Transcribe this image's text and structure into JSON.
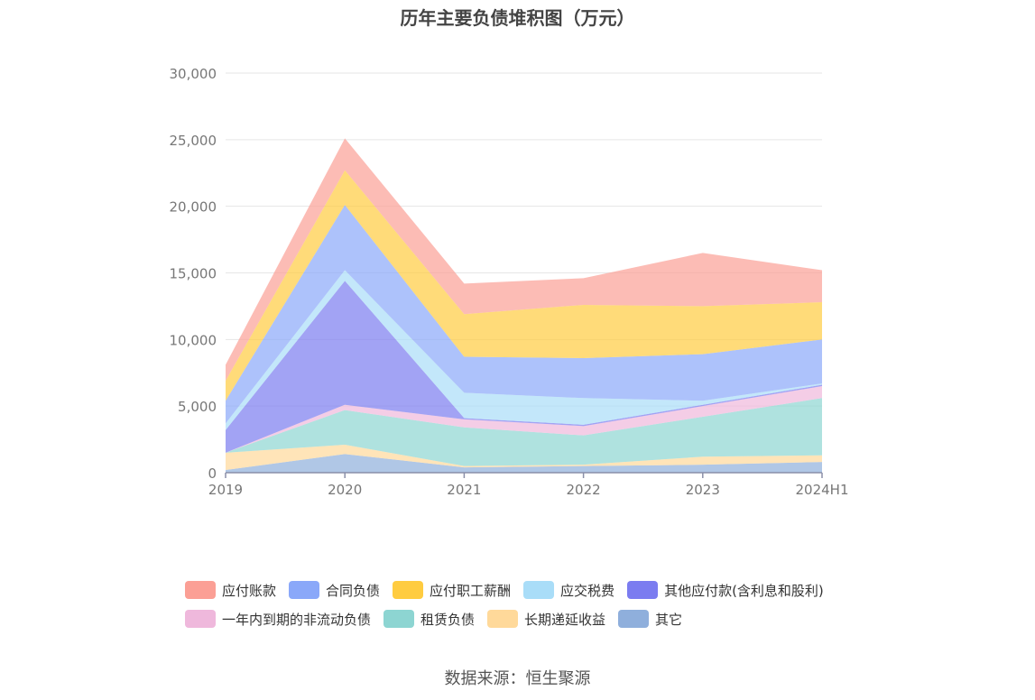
{
  "chart_data": {
    "type": "area",
    "stacked": true,
    "title": "历年主要负债堆积图（万元）",
    "source": "数据来源：恒生聚源",
    "x": [
      "2019",
      "2020",
      "2021",
      "2022",
      "2023",
      "2024H1"
    ],
    "yticks": [
      "0",
      "5,000",
      "10,000",
      "15,000",
      "20,000",
      "25,000",
      "30,000"
    ],
    "ylim": [
      0,
      30000
    ],
    "grid": true,
    "legend_position": "bottom",
    "series": [
      {
        "name": "其它",
        "color": "#8fafdc",
        "values": [
          200,
          1400,
          400,
          500,
          600,
          800
        ]
      },
      {
        "name": "长期递延收益",
        "color": "#ffd99a",
        "values": [
          1300,
          700,
          100,
          100,
          600,
          500
        ]
      },
      {
        "name": "租赁负债",
        "color": "#8dd5d2",
        "values": [
          0,
          2600,
          2900,
          2200,
          3000,
          4300
        ]
      },
      {
        "name": "一年内到期的非流动负债",
        "color": "#efb8dc",
        "values": [
          0,
          400,
          600,
          700,
          800,
          900
        ]
      },
      {
        "name": "其他应付款(含利息和股利)",
        "color": "#7b7cf0",
        "values": [
          1700,
          9300,
          100,
          100,
          100,
          100
        ]
      },
      {
        "name": "应交税费",
        "color": "#a9ddf8",
        "values": [
          500,
          800,
          1900,
          2000,
          300,
          100
        ]
      },
      {
        "name": "合同负债",
        "color": "#8aa8f9",
        "values": [
          1700,
          4900,
          2700,
          3000,
          3500,
          3300
        ]
      },
      {
        "name": "应付职工薪酬",
        "color": "#ffcc40",
        "values": [
          1500,
          2600,
          3200,
          4000,
          3600,
          2800
        ]
      },
      {
        "name": "应付账款",
        "color": "#fb9f95",
        "values": [
          1200,
          2400,
          2300,
          2000,
          4000,
          2400
        ]
      }
    ],
    "legend_rows": [
      [
        "应付账款",
        "合同负债",
        "应付职工薪酬",
        "应交税费",
        "其他应付款(含利息和股利)"
      ],
      [
        "一年内到期的非流动负债",
        "租赁负债",
        "长期递延收益",
        "其它"
      ]
    ]
  }
}
